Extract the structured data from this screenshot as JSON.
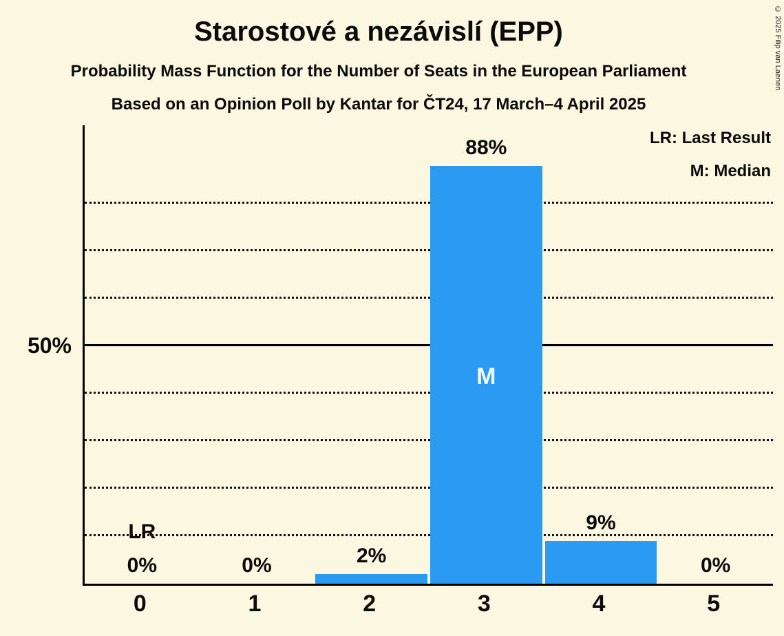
{
  "title": "Starostové a nezávislí (EPP)",
  "subtitles": [
    "Probability Mass Function for the Number of Seats in the European Parliament",
    "Based on an Opinion Poll by Kantar for ČT24, 17 March–4 April 2025"
  ],
  "copyright": "© 2025 Filip van Laenen",
  "legend": {
    "last_result": "LR: Last Result",
    "median": "M: Median"
  },
  "y_axis": {
    "tick_label": "50%",
    "tick_value": 50
  },
  "chart_data": {
    "type": "bar",
    "title": "Starostové a nezávislí (EPP)",
    "categories": [
      "0",
      "1",
      "2",
      "3",
      "4",
      "5"
    ],
    "values": [
      0,
      0,
      2,
      88,
      9,
      0
    ],
    "bar_labels": [
      "0%",
      "0%",
      "2%",
      "88%",
      "9%",
      "0%"
    ],
    "median_index": 3,
    "median_marker": "M",
    "last_result_index": 0,
    "last_result_marker": "LR",
    "ylim": [
      0,
      96.5
    ],
    "dotted_gridlines": [
      10,
      20,
      30,
      40,
      60,
      70,
      80
    ],
    "solid_gridline": 50,
    "legend_position": "top-right",
    "colors": {
      "bar": "#2B9AF3",
      "background": "#FCF7E0",
      "text": "#0B0B0B",
      "median_text": "#F2FAFF"
    }
  }
}
